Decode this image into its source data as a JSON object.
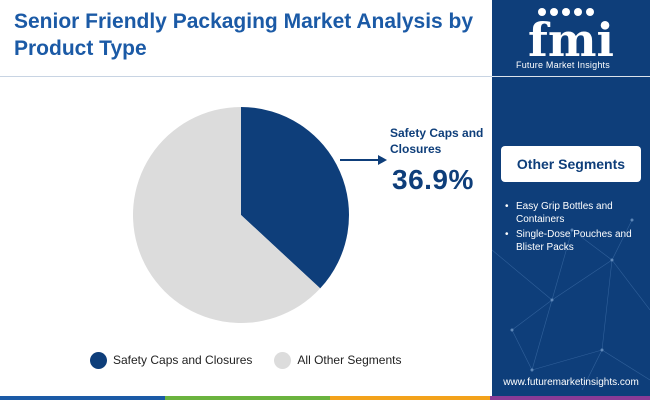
{
  "title": "Senior Friendly Packaging Market Analysis by Product Type",
  "chart_data": {
    "type": "pie",
    "title": "Senior Friendly Packaging Market Analysis by Product Type",
    "categories": [
      "Safety Caps and Closures",
      "All Other Segments"
    ],
    "values": [
      36.9,
      63.1
    ],
    "unit": "%",
    "colors": [
      "#0e3e7a",
      "#dcdcdc"
    ],
    "legend_position": "bottom",
    "highlight": {
      "label": "Safety Caps and Closures",
      "value_text": "36.9%"
    }
  },
  "sidebar": {
    "brand": "Future Market Insights",
    "logo_letters": "fmi",
    "segments_header": "Other Segments",
    "segments": [
      "Easy Grip Bottles and Containers",
      "Single-Dose Pouches and Blister Packs"
    ],
    "website": "www.futuremarketinsights.com"
  },
  "colors": {
    "primary": "#0e3e7a",
    "title": "#1b5aa6",
    "grey": "#dcdcdc",
    "bar_colors": [
      "#1b5aa6",
      "#6bb33e",
      "#f3a21b",
      "#8a3b96"
    ]
  }
}
